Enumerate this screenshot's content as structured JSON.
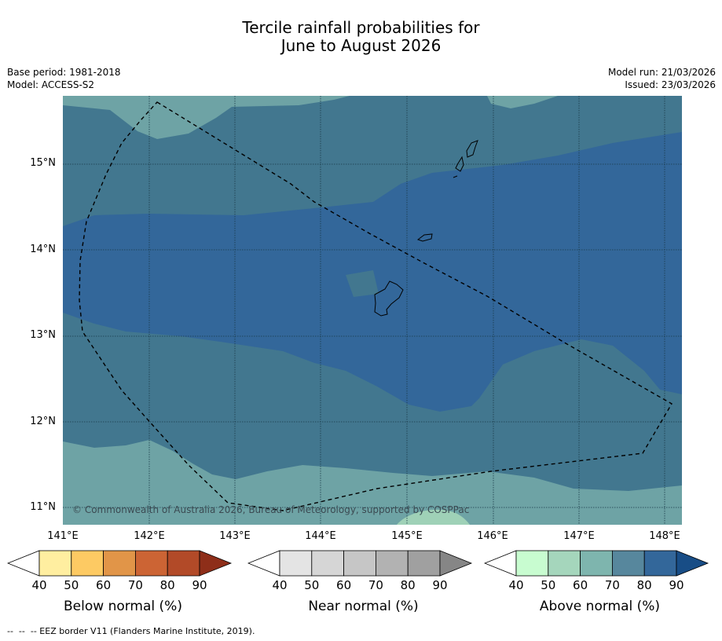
{
  "title": {
    "line1": "Tercile rainfall probabilities for",
    "line2": "June to August 2026"
  },
  "meta": {
    "base_period": "Base period: 1981-2018",
    "model": "Model: ACCESS-S2",
    "model_run": "Model run: 21/03/2026",
    "issued": "Issued: 23/03/2026"
  },
  "map": {
    "lat_labels": [
      "15°N",
      "14°N",
      "13°N",
      "12°N",
      "11°N"
    ],
    "lon_labels": [
      "141°E",
      "142°E",
      "143°E",
      "144°E",
      "145°E",
      "146°E",
      "147°E",
      "148°E"
    ],
    "copyright": "© Commonwealth of Australia 2026, Bureau of Meteorology, supported by COSPPac",
    "colors": {
      "above_70": "#6ea3a5",
      "above_80": "#42778f",
      "above_90": "#33679a",
      "above_60_light": "#9fd1b7"
    }
  },
  "colorbars": [
    {
      "label": "Below normal (%)",
      "ticks": [
        "40",
        "50",
        "60",
        "70",
        "80",
        "90"
      ],
      "colors": [
        "#ffeea0",
        "#fdca63",
        "#e19548",
        "#cc6434",
        "#b24a28",
        "#8e2e19"
      ]
    },
    {
      "label": "Near normal (%)",
      "ticks": [
        "40",
        "50",
        "60",
        "70",
        "80",
        "90"
      ],
      "colors": [
        "#e4e4e4",
        "#d6d6d6",
        "#c6c6c6",
        "#b2b2b2",
        "#a0a0a0",
        "#868686"
      ]
    },
    {
      "label": "Above normal (%)",
      "ticks": [
        "40",
        "50",
        "60",
        "70",
        "80",
        "90"
      ],
      "colors": [
        "#c8fcd0",
        "#a5d6bc",
        "#7eb5ae",
        "#57879d",
        "#33679a",
        "#184d86"
      ]
    }
  ],
  "footer": "--  --  -- EEZ border V11 (Flanders Marine Institute, 2019)."
}
